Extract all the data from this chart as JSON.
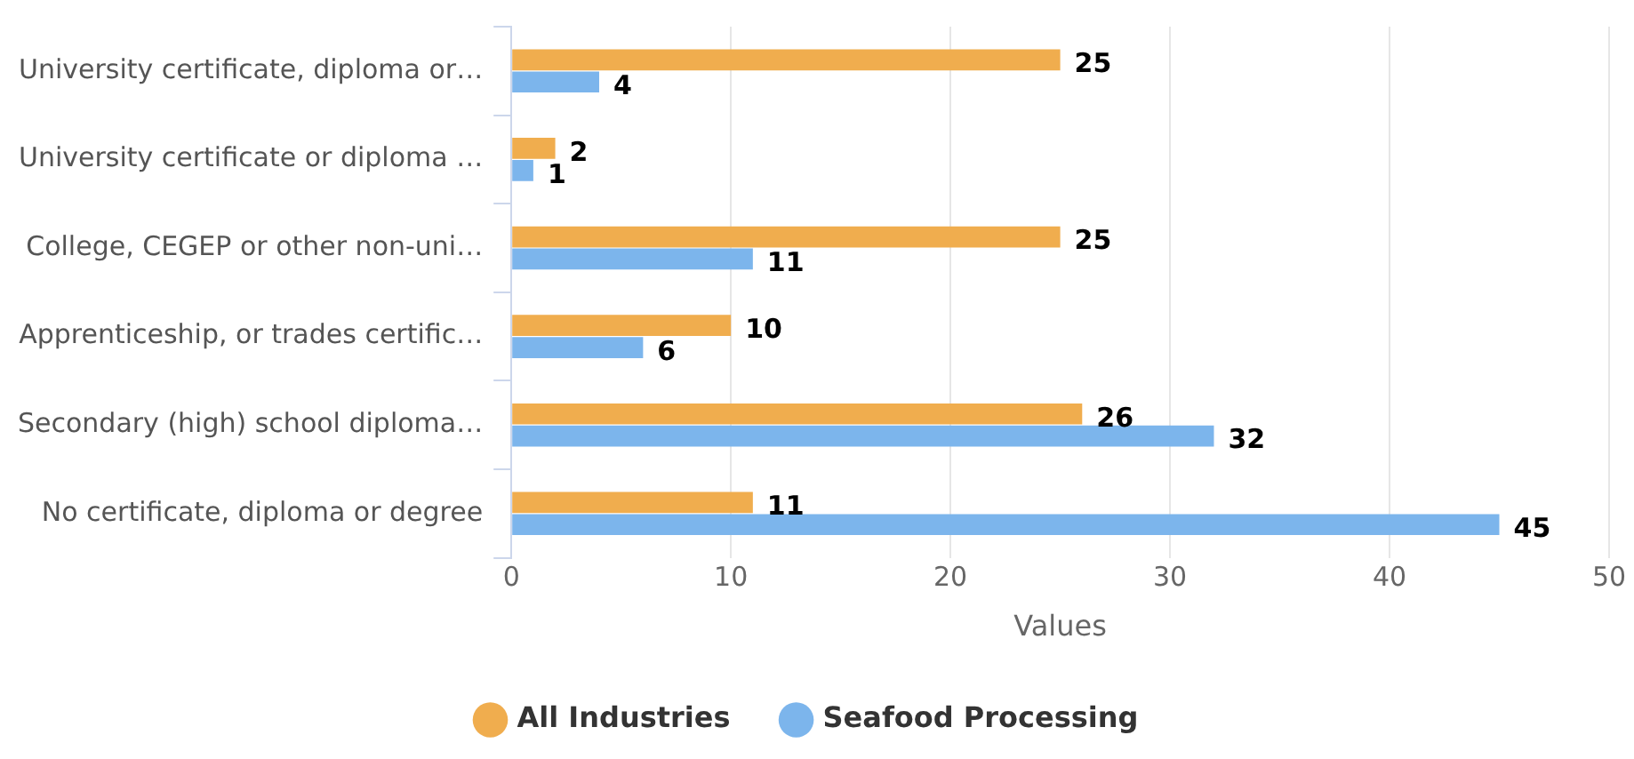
{
  "chart_data": {
    "type": "bar",
    "orientation": "horizontal",
    "xlabel": "Values",
    "categories": [
      "University certificate, diploma or…",
      "University certificate or diploma …",
      "College, CEGEP or other non-uni…",
      "Apprenticeship, or trades certific…",
      "Secondary (high) school diploma…",
      "No certificate, diploma or degree"
    ],
    "series": [
      {
        "name": "All Industries",
        "color": "#f0ad4e",
        "values": [
          25,
          2,
          25,
          10,
          26,
          11
        ]
      },
      {
        "name": "Seafood Processing",
        "color": "#7cb5ec",
        "values": [
          4,
          1,
          11,
          6,
          32,
          45
        ]
      }
    ],
    "xlim": [
      0,
      50
    ],
    "xticks": [
      0,
      10,
      20,
      30,
      40,
      50
    ],
    "grid": "x",
    "legend": "bottom",
    "data_labels": true
  }
}
